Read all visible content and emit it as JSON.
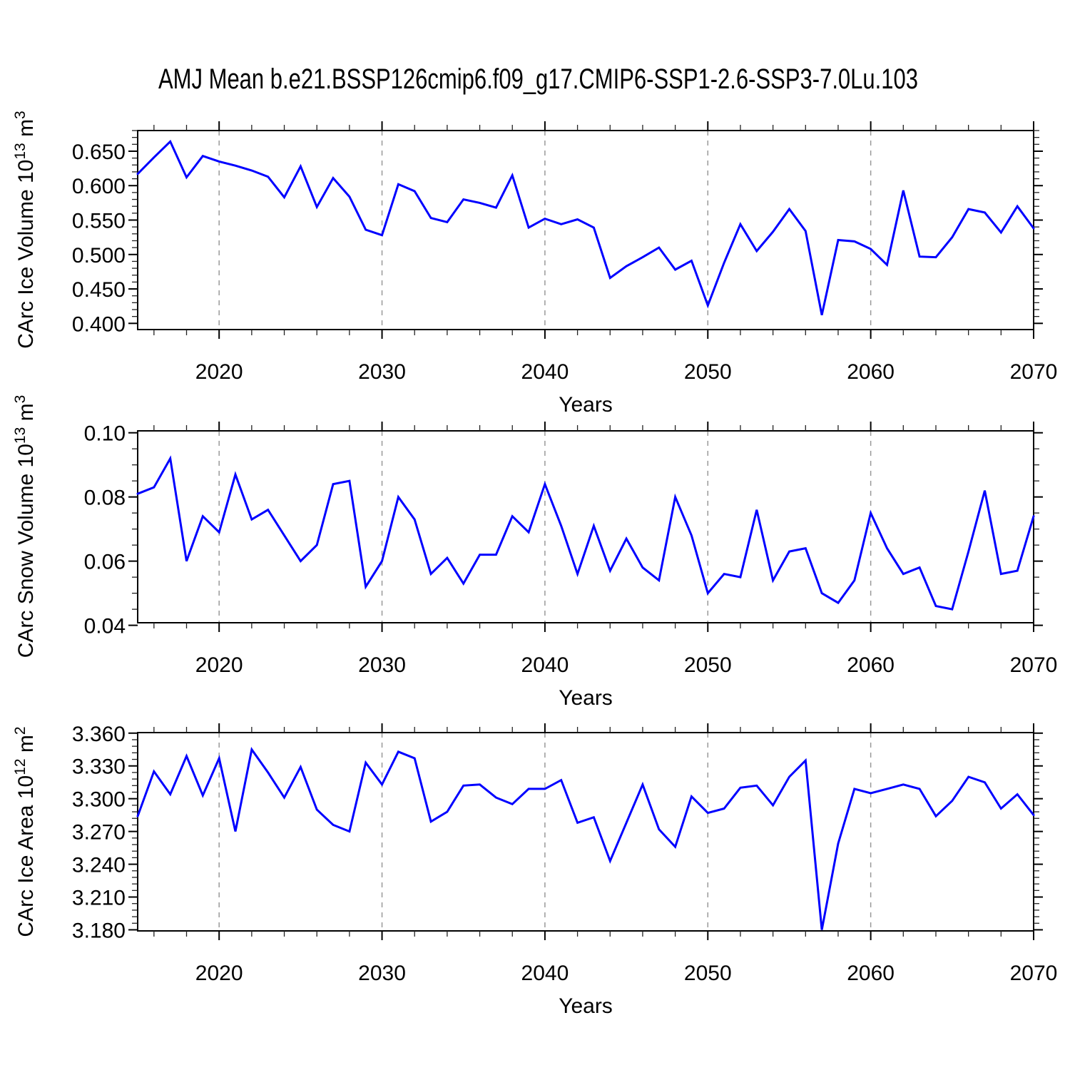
{
  "title": "AMJ Mean b.e21.BSSP126cmip6.f09_g17.CMIP6-SSP1-2.6-SSP3-7.0Lu.103",
  "colors": {
    "line": "#0000ff",
    "grid": "#999999",
    "axis": "#000000",
    "minor_tick": "#222222",
    "text": "#000000"
  },
  "chart_data": [
    {
      "type": "line",
      "name": "carc-ice-volume",
      "ylabel_parts": [
        {
          "t": "CArc Ice Volume 10"
        },
        {
          "t": "13",
          "sup": true
        },
        {
          "t": " m"
        },
        {
          "t": "3",
          "sup": true
        }
      ],
      "xlabel": "Years",
      "legend": "none",
      "grid": "vertical-dashed",
      "xlim": [
        2015,
        2070
      ],
      "ylim": [
        0.391,
        0.68
      ],
      "xticks": {
        "values": [
          2020,
          2030,
          2040,
          2050,
          2060,
          2070
        ],
        "labels": [
          "2020",
          "2030",
          "2040",
          "2050",
          "2060",
          "2070"
        ]
      },
      "yticks": {
        "values": [
          0.4,
          0.45,
          0.5,
          0.55,
          0.6,
          0.65
        ],
        "labels": [
          "0.400",
          "0.450",
          "0.500",
          "0.550",
          "0.600",
          "0.650"
        ]
      },
      "x_minor_step": 2,
      "y_minor_step": 0.01,
      "grid_years": [
        2020,
        2030,
        2040,
        2050,
        2060
      ],
      "x": [
        2015,
        2016,
        2017,
        2018,
        2019,
        2020,
        2021,
        2022,
        2023,
        2024,
        2025,
        2026,
        2027,
        2028,
        2029,
        2030,
        2031,
        2032,
        2033,
        2034,
        2035,
        2036,
        2037,
        2038,
        2039,
        2040,
        2041,
        2042,
        2043,
        2044,
        2045,
        2046,
        2047,
        2048,
        2049,
        2050,
        2051,
        2052,
        2053,
        2054,
        2055,
        2056,
        2057,
        2058,
        2059,
        2060,
        2061,
        2062,
        2063,
        2064,
        2065,
        2066,
        2067,
        2068,
        2069,
        2070
      ],
      "values": [
        0.617,
        0.641,
        0.664,
        0.612,
        0.643,
        0.635,
        0.629,
        0.622,
        0.613,
        0.583,
        0.628,
        0.569,
        0.611,
        0.584,
        0.536,
        0.528,
        0.602,
        0.592,
        0.553,
        0.547,
        0.58,
        0.575,
        0.568,
        0.615,
        0.539,
        0.552,
        0.544,
        0.551,
        0.539,
        0.466,
        0.483,
        0.496,
        0.51,
        0.478,
        0.491,
        0.426,
        0.488,
        0.544,
        0.505,
        0.533,
        0.566,
        0.534,
        0.412,
        0.521,
        0.519,
        0.508,
        0.485,
        0.593,
        0.497,
        0.496,
        0.525,
        0.566,
        0.561,
        0.532,
        0.57,
        0.538
      ]
    },
    {
      "type": "line",
      "name": "carc-snow-volume",
      "ylabel_parts": [
        {
          "t": "CArc Snow Volume 10"
        },
        {
          "t": "13",
          "sup": true
        },
        {
          "t": " m"
        },
        {
          "t": "3",
          "sup": true
        }
      ],
      "xlabel": "Years",
      "legend": "none",
      "grid": "vertical-dashed",
      "xlim": [
        2015,
        2070
      ],
      "ylim": [
        0.0408,
        0.1006
      ],
      "xticks": {
        "values": [
          2020,
          2030,
          2040,
          2050,
          2060,
          2070
        ],
        "labels": [
          "2020",
          "2030",
          "2040",
          "2050",
          "2060",
          "2070"
        ]
      },
      "yticks": {
        "values": [
          0.04,
          0.06,
          0.08,
          0.1
        ],
        "labels": [
          "0.04",
          "0.06",
          "0.08",
          "0.10"
        ]
      },
      "x_minor_step": 2,
      "y_minor_step": 0.005,
      "grid_years": [
        2020,
        2030,
        2040,
        2050,
        2060
      ],
      "x": [
        2015,
        2016,
        2017,
        2018,
        2019,
        2020,
        2021,
        2022,
        2023,
        2024,
        2025,
        2026,
        2027,
        2028,
        2029,
        2030,
        2031,
        2032,
        2033,
        2034,
        2035,
        2036,
        2037,
        2038,
        2039,
        2040,
        2041,
        2042,
        2043,
        2044,
        2045,
        2046,
        2047,
        2048,
        2049,
        2050,
        2051,
        2052,
        2053,
        2054,
        2055,
        2056,
        2057,
        2058,
        2059,
        2060,
        2061,
        2062,
        2063,
        2064,
        2065,
        2066,
        2067,
        2068,
        2069,
        2070
      ],
      "values": [
        0.081,
        0.083,
        0.092,
        0.06,
        0.074,
        0.069,
        0.087,
        0.073,
        0.076,
        0.068,
        0.06,
        0.065,
        0.084,
        0.085,
        0.052,
        0.06,
        0.08,
        0.073,
        0.056,
        0.061,
        0.053,
        0.062,
        0.062,
        0.074,
        0.069,
        0.084,
        0.071,
        0.056,
        0.071,
        0.057,
        0.067,
        0.058,
        0.054,
        0.08,
        0.068,
        0.05,
        0.056,
        0.055,
        0.076,
        0.054,
        0.063,
        0.064,
        0.05,
        0.047,
        0.054,
        0.075,
        0.064,
        0.056,
        0.058,
        0.046,
        0.045,
        0.063,
        0.082,
        0.056,
        0.057,
        0.074
      ]
    },
    {
      "type": "line",
      "name": "carc-ice-area",
      "ylabel_parts": [
        {
          "t": "CArc Ice Area 10"
        },
        {
          "t": "12",
          "sup": true
        },
        {
          "t": " m"
        },
        {
          "t": "2",
          "sup": true
        }
      ],
      "xlabel": "Years",
      "legend": "none",
      "grid": "vertical-dashed",
      "xlim": [
        2015,
        2070
      ],
      "ylim": [
        3.179,
        3.3605
      ],
      "xticks": {
        "values": [
          2020,
          2030,
          2040,
          2050,
          2060,
          2070
        ],
        "labels": [
          "2020",
          "2030",
          "2040",
          "2050",
          "2060",
          "2070"
        ]
      },
      "yticks": {
        "values": [
          3.18,
          3.21,
          3.24,
          3.27,
          3.3,
          3.33,
          3.36
        ],
        "labels": [
          "3.180",
          "3.210",
          "3.240",
          "3.270",
          "3.300",
          "3.330",
          "3.360"
        ]
      },
      "x_minor_step": 2,
      "y_minor_step": 0.006,
      "grid_years": [
        2020,
        2030,
        2040,
        2050,
        2060
      ],
      "x": [
        2015,
        2016,
        2017,
        2018,
        2019,
        2020,
        2021,
        2022,
        2023,
        2024,
        2025,
        2026,
        2027,
        2028,
        2029,
        2030,
        2031,
        2032,
        2033,
        2034,
        2035,
        2036,
        2037,
        2038,
        2039,
        2040,
        2041,
        2042,
        2043,
        2044,
        2045,
        2046,
        2047,
        2048,
        2049,
        2050,
        2051,
        2052,
        2053,
        2054,
        2055,
        2056,
        2057,
        2058,
        2059,
        2060,
        2061,
        2062,
        2063,
        2064,
        2065,
        2066,
        2067,
        2068,
        2069,
        2070
      ],
      "values": [
        3.284,
        3.325,
        3.304,
        3.339,
        3.303,
        3.337,
        3.27,
        3.345,
        3.324,
        3.301,
        3.329,
        3.29,
        3.276,
        3.27,
        3.333,
        3.313,
        3.343,
        3.337,
        3.279,
        3.288,
        3.312,
        3.313,
        3.301,
        3.295,
        3.309,
        3.309,
        3.317,
        3.278,
        3.283,
        3.243,
        3.278,
        3.313,
        3.272,
        3.256,
        3.302,
        3.287,
        3.291,
        3.31,
        3.312,
        3.294,
        3.32,
        3.335,
        3.18,
        3.259,
        3.309,
        3.305,
        3.309,
        3.313,
        3.309,
        3.284,
        3.298,
        3.32,
        3.315,
        3.291,
        3.304,
        3.285
      ]
    }
  ]
}
